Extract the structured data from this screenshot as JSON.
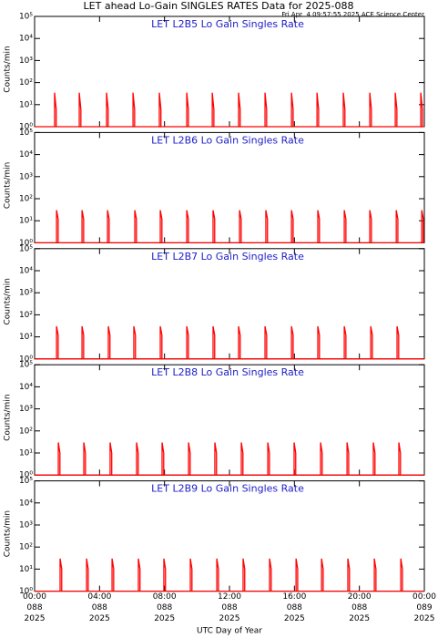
{
  "title": "LET ahead Lo-Gain SINGLES RATES Data for 2025-088",
  "subtitle": "Fri Apr  4 09:57:55 2025 ACE Science Center",
  "x_label": "UTC Day of Year",
  "chart_data": [
    {
      "type": "line",
      "title": "LET L2B5 Lo Gain Singles Rate",
      "y_label": "Counts/min",
      "log_scale": true,
      "xlim": [
        0,
        24
      ],
      "xticks": [
        0,
        4,
        8,
        12,
        16,
        20,
        24
      ],
      "ylim": [
        1,
        100000
      ],
      "yticks": [
        {
          "value": 1,
          "label": "10⁰"
        },
        {
          "value": 10,
          "label": "10¹"
        },
        {
          "value": 100,
          "label": "10²"
        },
        {
          "value": 1000,
          "label": "10³"
        },
        {
          "value": 10000,
          "label": "10⁴"
        },
        {
          "value": 100000,
          "label": "10⁵"
        }
      ],
      "series": [
        {
          "color": "#ff0000",
          "x": [
            0,
            1.23,
            1.23,
            1.33,
            1.33,
            2.75,
            2.75,
            2.85,
            2.85,
            4.43,
            4.43,
            4.53,
            4.53,
            6.06,
            6.06,
            6.16,
            6.16,
            7.68,
            7.68,
            7.78,
            7.78,
            9.37,
            9.37,
            9.47,
            9.47,
            10.94,
            10.94,
            11.04,
            11.04,
            12.56,
            12.56,
            12.66,
            12.66,
            14.19,
            14.19,
            14.29,
            14.29,
            15.82,
            15.82,
            15.92,
            15.92,
            17.39,
            17.39,
            17.49,
            17.49,
            19.01,
            19.01,
            19.11,
            19.11,
            20.64,
            20.64,
            20.74,
            20.74,
            22.21,
            22.21,
            22.31,
            22.31,
            23.78,
            23.78,
            23.88,
            23.88,
            24
          ],
          "values": [
            1,
            1,
            35,
            6,
            1,
            1,
            35,
            6,
            1,
            1,
            35,
            6,
            1,
            1,
            35,
            6,
            1,
            1,
            35,
            6,
            1,
            1,
            35,
            6,
            1,
            1,
            35,
            6,
            1,
            1,
            35,
            6,
            1,
            1,
            35,
            6,
            1,
            1,
            35,
            6,
            1,
            1,
            35,
            6,
            1,
            1,
            35,
            6,
            1,
            1,
            35,
            6,
            1,
            1,
            35,
            6,
            1,
            1,
            35,
            6,
            1,
            1
          ]
        }
      ]
    },
    {
      "type": "line",
      "title": "LET L2B6 Lo Gain Singles Rate",
      "y_label": "Counts/min",
      "log_scale": true,
      "xlim": [
        0,
        24
      ],
      "xticks": [
        0,
        4,
        8,
        12,
        16,
        20,
        24
      ],
      "ylim": [
        1,
        100000
      ],
      "yticks": [
        {
          "value": 1,
          "label": "10⁰"
        },
        {
          "value": 10,
          "label": "10¹"
        },
        {
          "value": 100,
          "label": "10²"
        },
        {
          "value": 1000,
          "label": "10³"
        },
        {
          "value": 10000,
          "label": "10⁴"
        },
        {
          "value": 100000,
          "label": "10⁵"
        }
      ],
      "series": [
        {
          "color": "#ff0000",
          "x": [
            0,
            1.35,
            1.35,
            1.45,
            1.45,
            2.92,
            2.92,
            3.02,
            3.02,
            4.49,
            4.49,
            4.59,
            4.59,
            6.17,
            6.17,
            6.27,
            6.27,
            7.74,
            7.74,
            7.84,
            7.84,
            9.37,
            9.37,
            9.47,
            9.47,
            10.99,
            10.99,
            11.09,
            11.09,
            12.62,
            12.62,
            12.72,
            12.72,
            14.24,
            14.24,
            14.34,
            14.34,
            15.82,
            15.82,
            15.92,
            15.92,
            17.44,
            17.44,
            17.54,
            17.54,
            19.07,
            19.07,
            19.17,
            19.17,
            20.64,
            20.64,
            20.74,
            20.74,
            22.27,
            22.27,
            22.37,
            22.37,
            23.84,
            23.84,
            23.94,
            23.94,
            24
          ],
          "values": [
            1,
            1,
            30,
            12,
            1,
            1,
            30,
            12,
            1,
            1,
            30,
            12,
            1,
            1,
            30,
            12,
            1,
            1,
            30,
            12,
            1,
            1,
            30,
            12,
            1,
            1,
            30,
            12,
            1,
            1,
            30,
            12,
            1,
            1,
            30,
            12,
            1,
            1,
            30,
            12,
            1,
            1,
            30,
            12,
            1,
            1,
            30,
            12,
            1,
            1,
            30,
            12,
            1,
            1,
            30,
            12,
            1,
            1,
            30,
            12,
            1,
            1
          ]
        }
      ]
    },
    {
      "type": "line",
      "title": "LET L2B7 Lo Gain Singles Rate",
      "y_label": "Counts/min",
      "log_scale": true,
      "xlim": [
        0,
        24
      ],
      "xticks": [
        0,
        4,
        8,
        12,
        16,
        20,
        24
      ],
      "ylim": [
        1,
        100000
      ],
      "yticks": [
        {
          "value": 1,
          "label": "10⁰"
        },
        {
          "value": 10,
          "label": "10¹"
        },
        {
          "value": 100,
          "label": "10²"
        },
        {
          "value": 1000,
          "label": "10³"
        },
        {
          "value": 10000,
          "label": "10⁴"
        },
        {
          "value": 100000,
          "label": "10⁵"
        }
      ],
      "series": [
        {
          "color": "#ff0000",
          "x": [
            0,
            1.35,
            1.35,
            1.45,
            1.45,
            2.92,
            2.92,
            3.02,
            3.02,
            4.54,
            4.54,
            4.64,
            4.64,
            6.11,
            6.11,
            6.21,
            6.21,
            7.74,
            7.74,
            7.84,
            7.84,
            9.37,
            9.37,
            9.47,
            9.47,
            10.99,
            10.99,
            11.09,
            11.09,
            12.56,
            12.56,
            12.66,
            12.66,
            14.19,
            14.19,
            14.29,
            14.29,
            15.82,
            15.82,
            15.92,
            15.92,
            17.44,
            17.44,
            17.54,
            17.54,
            19.07,
            19.07,
            19.17,
            19.17,
            20.7,
            20.7,
            20.8,
            20.8,
            22.32,
            22.32,
            22.42,
            22.42,
            24
          ],
          "values": [
            1,
            1,
            30,
            12,
            1,
            1,
            30,
            12,
            1,
            1,
            30,
            12,
            1,
            1,
            30,
            12,
            1,
            1,
            30,
            12,
            1,
            1,
            30,
            12,
            1,
            1,
            30,
            12,
            1,
            1,
            30,
            12,
            1,
            1,
            30,
            12,
            1,
            1,
            30,
            12,
            1,
            1,
            30,
            12,
            1,
            1,
            30,
            12,
            1,
            1,
            30,
            12,
            1,
            1,
            30,
            12,
            1,
            1
          ]
        }
      ]
    },
    {
      "type": "line",
      "title": "LET L2B8 Lo Gain Singles Rate",
      "y_label": "Counts/min",
      "log_scale": true,
      "xlim": [
        0,
        24
      ],
      "xticks": [
        0,
        4,
        8,
        12,
        16,
        20,
        24
      ],
      "ylim": [
        1,
        100000
      ],
      "yticks": [
        {
          "value": 1,
          "label": "10⁰"
        },
        {
          "value": 10,
          "label": "10¹"
        },
        {
          "value": 100,
          "label": "10²"
        },
        {
          "value": 1000,
          "label": "10³"
        },
        {
          "value": 10000,
          "label": "10⁴"
        },
        {
          "value": 100000,
          "label": "10⁵"
        }
      ],
      "series": [
        {
          "color": "#ff0000",
          "x": [
            0,
            1.46,
            1.46,
            1.56,
            1.56,
            3.03,
            3.03,
            3.13,
            3.13,
            4.65,
            4.65,
            4.75,
            4.75,
            6.28,
            6.28,
            6.38,
            6.38,
            7.85,
            7.85,
            7.95,
            7.95,
            9.48,
            9.48,
            9.58,
            9.58,
            11.1,
            11.1,
            11.2,
            11.2,
            12.73,
            12.73,
            12.83,
            12.83,
            14.36,
            14.36,
            14.46,
            14.46,
            15.98,
            15.98,
            16.08,
            16.08,
            17.61,
            17.61,
            17.71,
            17.71,
            19.24,
            19.24,
            19.34,
            19.34,
            20.86,
            20.86,
            20.96,
            20.96,
            22.43,
            22.43,
            22.53,
            22.53,
            24
          ],
          "values": [
            1,
            1,
            30,
            10,
            1,
            1,
            30,
            10,
            1,
            1,
            30,
            10,
            1,
            1,
            30,
            10,
            1,
            1,
            30,
            10,
            1,
            1,
            30,
            10,
            1,
            1,
            30,
            10,
            1,
            1,
            30,
            10,
            1,
            1,
            30,
            10,
            1,
            1,
            30,
            10,
            1,
            1,
            30,
            10,
            1,
            1,
            30,
            10,
            1,
            1,
            30,
            10,
            1,
            1,
            30,
            10,
            1,
            1
          ]
        }
      ]
    },
    {
      "type": "line",
      "title": "LET L2B9 Lo Gain Singles Rate",
      "y_label": "Counts/min",
      "log_scale": true,
      "xlim": [
        0,
        24
      ],
      "xticks": [
        {
          "value": 0,
          "label": [
            "00:00",
            "088",
            "2025"
          ]
        },
        {
          "value": 4,
          "label": [
            "04:00",
            "088",
            "2025"
          ]
        },
        {
          "value": 8,
          "label": [
            "08:00",
            "088",
            "2025"
          ]
        },
        {
          "value": 12,
          "label": [
            "12:00",
            "088",
            "2025"
          ]
        },
        {
          "value": 16,
          "label": [
            "16:00",
            "088",
            "2025"
          ]
        },
        {
          "value": 20,
          "label": [
            "20:00",
            "088",
            "2025"
          ]
        },
        {
          "value": 24,
          "label": [
            "00:00",
            "089",
            "2025"
          ]
        }
      ],
      "ylim": [
        1,
        100000
      ],
      "yticks": [
        {
          "value": 1,
          "label": "10⁰"
        },
        {
          "value": 10,
          "label": "10¹"
        },
        {
          "value": 100,
          "label": "10²"
        },
        {
          "value": 1000,
          "label": "10³"
        },
        {
          "value": 10000,
          "label": "10⁴"
        },
        {
          "value": 100000,
          "label": "10⁵"
        }
      ],
      "series": [
        {
          "color": "#ff0000",
          "x": [
            0,
            1.57,
            1.57,
            1.67,
            1.67,
            3.2,
            3.2,
            3.3,
            3.3,
            4.77,
            4.77,
            4.87,
            4.87,
            6.39,
            6.39,
            6.49,
            6.49,
            7.96,
            7.96,
            8.06,
            8.06,
            9.59,
            9.59,
            9.69,
            9.69,
            11.22,
            11.22,
            11.32,
            11.32,
            12.84,
            12.84,
            12.94,
            12.94,
            14.47,
            14.47,
            14.57,
            14.57,
            16.1,
            16.1,
            16.2,
            16.2,
            17.67,
            17.67,
            17.77,
            17.77,
            19.29,
            19.29,
            19.39,
            19.39,
            20.92,
            20.92,
            21.02,
            21.02,
            22.55,
            22.55,
            22.65,
            22.65,
            24
          ],
          "values": [
            1,
            1,
            30,
            10,
            1,
            1,
            30,
            10,
            1,
            1,
            30,
            10,
            1,
            1,
            30,
            10,
            1,
            1,
            30,
            10,
            1,
            1,
            30,
            10,
            1,
            1,
            30,
            10,
            1,
            1,
            30,
            10,
            1,
            1,
            30,
            10,
            1,
            1,
            30,
            10,
            1,
            1,
            30,
            10,
            1,
            1,
            30,
            10,
            1,
            1,
            30,
            10,
            1,
            1,
            30,
            10,
            1,
            1
          ]
        }
      ]
    }
  ]
}
